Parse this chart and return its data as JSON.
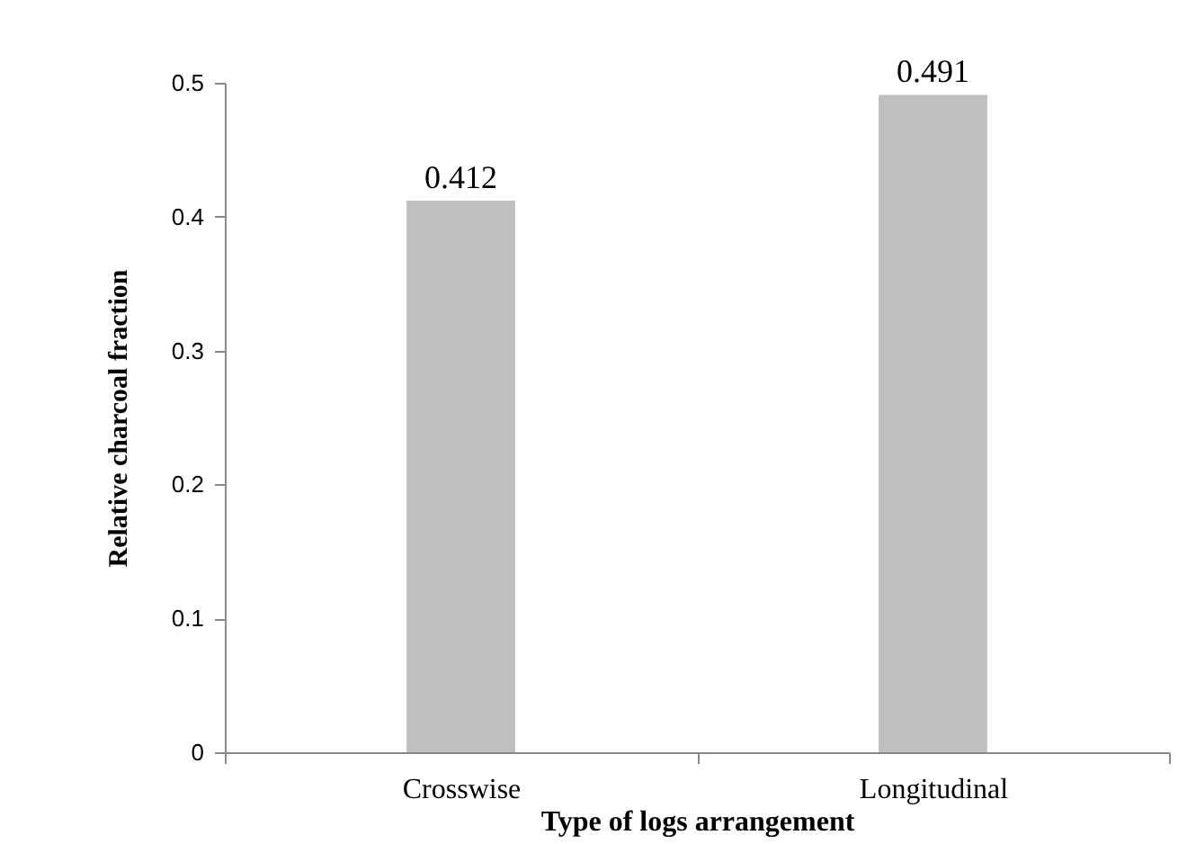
{
  "chart_data": {
    "type": "bar",
    "xlabel": "Type of logs arrangement",
    "ylabel": "Relative charcoal fraction",
    "categories": [
      "Crosswise",
      "Longitudinal"
    ],
    "values": [
      0.412,
      0.491
    ],
    "color": "#bfbfbf",
    "ylim": [
      0,
      0.5
    ],
    "yticks": [
      0,
      0.1,
      0.2,
      0.3,
      0.4,
      0.5
    ],
    "data_labels": true
  }
}
